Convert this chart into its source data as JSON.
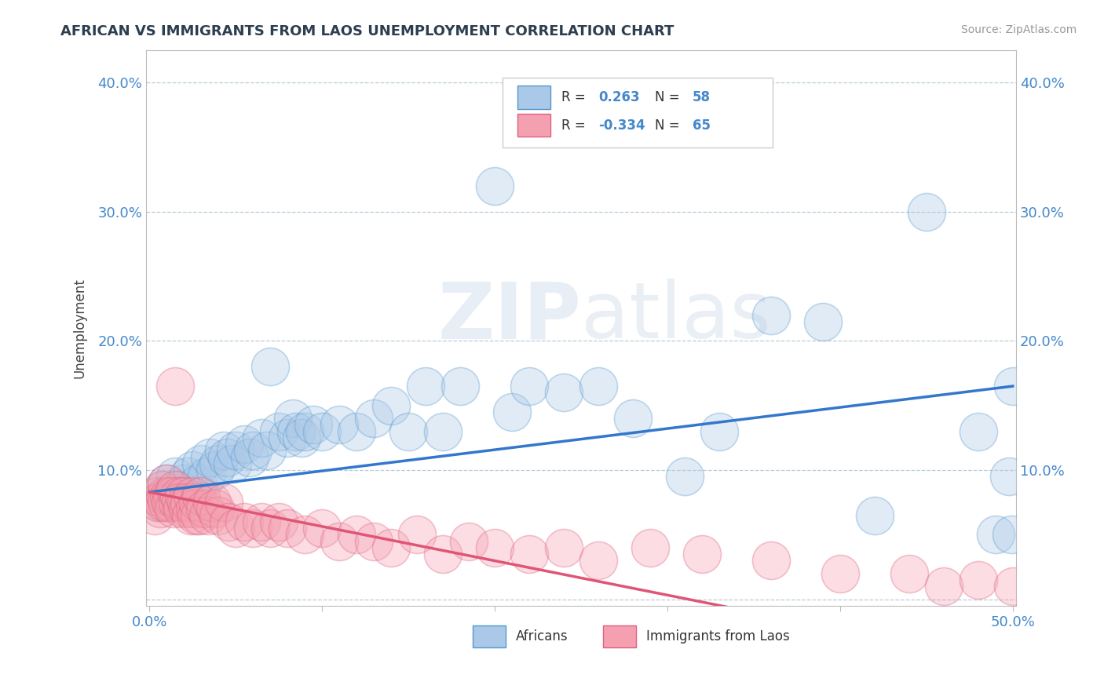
{
  "title": "AFRICAN VS IMMIGRANTS FROM LAOS UNEMPLOYMENT CORRELATION CHART",
  "source": "Source: ZipAtlas.com",
  "ylabel": "Unemployment",
  "xlim": [
    -0.002,
    0.502
  ],
  "ylim": [
    -0.005,
    0.425
  ],
  "xticks": [
    0.0,
    0.1,
    0.2,
    0.3,
    0.4,
    0.5
  ],
  "yticks": [
    0.0,
    0.1,
    0.2,
    0.3,
    0.4
  ],
  "ytick_labels": [
    "",
    "10.0%",
    "20.0%",
    "30.0%",
    "40.0%"
  ],
  "xtick_labels": [
    "0.0%",
    "",
    "",
    "",
    "",
    "50.0%"
  ],
  "african_color": "#aac8e8",
  "laos_color": "#f4a0b0",
  "african_edge_color": "#5599cc",
  "laos_edge_color": "#e06080",
  "african_line_color": "#3377cc",
  "laos_line_color": "#e05575",
  "legend_R_african": "0.263",
  "legend_N_african": "58",
  "legend_R_laos": "-0.334",
  "legend_N_laos": "65",
  "watermark": "ZIPatlas",
  "africans_x": [
    0.005,
    0.008,
    0.01,
    0.012,
    0.015,
    0.018,
    0.02,
    0.022,
    0.025,
    0.028,
    0.03,
    0.033,
    0.035,
    0.038,
    0.04,
    0.043,
    0.045,
    0.048,
    0.05,
    0.055,
    0.058,
    0.06,
    0.065,
    0.068,
    0.07,
    0.075,
    0.08,
    0.083,
    0.085,
    0.088,
    0.09,
    0.095,
    0.1,
    0.11,
    0.12,
    0.13,
    0.14,
    0.15,
    0.16,
    0.17,
    0.18,
    0.2,
    0.21,
    0.22,
    0.24,
    0.26,
    0.28,
    0.31,
    0.33,
    0.36,
    0.39,
    0.42,
    0.45,
    0.48,
    0.49,
    0.498,
    0.499,
    0.5
  ],
  "africans_y": [
    0.075,
    0.085,
    0.09,
    0.08,
    0.095,
    0.085,
    0.09,
    0.095,
    0.1,
    0.09,
    0.105,
    0.095,
    0.11,
    0.1,
    0.105,
    0.115,
    0.11,
    0.105,
    0.115,
    0.12,
    0.11,
    0.115,
    0.125,
    0.115,
    0.18,
    0.13,
    0.125,
    0.14,
    0.13,
    0.125,
    0.13,
    0.135,
    0.13,
    0.135,
    0.13,
    0.14,
    0.15,
    0.13,
    0.165,
    0.13,
    0.165,
    0.32,
    0.145,
    0.165,
    0.16,
    0.165,
    0.14,
    0.095,
    0.13,
    0.22,
    0.215,
    0.065,
    0.3,
    0.13,
    0.05,
    0.095,
    0.05,
    0.165
  ],
  "laos_x": [
    0.003,
    0.004,
    0.005,
    0.006,
    0.007,
    0.008,
    0.009,
    0.01,
    0.01,
    0.011,
    0.012,
    0.013,
    0.014,
    0.015,
    0.015,
    0.016,
    0.017,
    0.018,
    0.019,
    0.02,
    0.021,
    0.022,
    0.023,
    0.024,
    0.025,
    0.026,
    0.027,
    0.028,
    0.029,
    0.03,
    0.032,
    0.034,
    0.036,
    0.038,
    0.04,
    0.043,
    0.046,
    0.05,
    0.055,
    0.06,
    0.065,
    0.07,
    0.075,
    0.08,
    0.09,
    0.1,
    0.11,
    0.12,
    0.13,
    0.14,
    0.155,
    0.17,
    0.185,
    0.2,
    0.22,
    0.24,
    0.26,
    0.29,
    0.32,
    0.36,
    0.4,
    0.44,
    0.46,
    0.48,
    0.5
  ],
  "laos_y": [
    0.065,
    0.08,
    0.075,
    0.07,
    0.085,
    0.075,
    0.08,
    0.075,
    0.09,
    0.08,
    0.075,
    0.08,
    0.07,
    0.085,
    0.165,
    0.075,
    0.08,
    0.075,
    0.07,
    0.08,
    0.075,
    0.07,
    0.075,
    0.065,
    0.08,
    0.07,
    0.065,
    0.075,
    0.065,
    0.08,
    0.07,
    0.065,
    0.075,
    0.07,
    0.065,
    0.075,
    0.06,
    0.055,
    0.06,
    0.055,
    0.06,
    0.055,
    0.06,
    0.055,
    0.05,
    0.055,
    0.045,
    0.05,
    0.045,
    0.04,
    0.05,
    0.035,
    0.045,
    0.04,
    0.035,
    0.04,
    0.03,
    0.04,
    0.035,
    0.03,
    0.02,
    0.02,
    0.01,
    0.015,
    0.01
  ]
}
